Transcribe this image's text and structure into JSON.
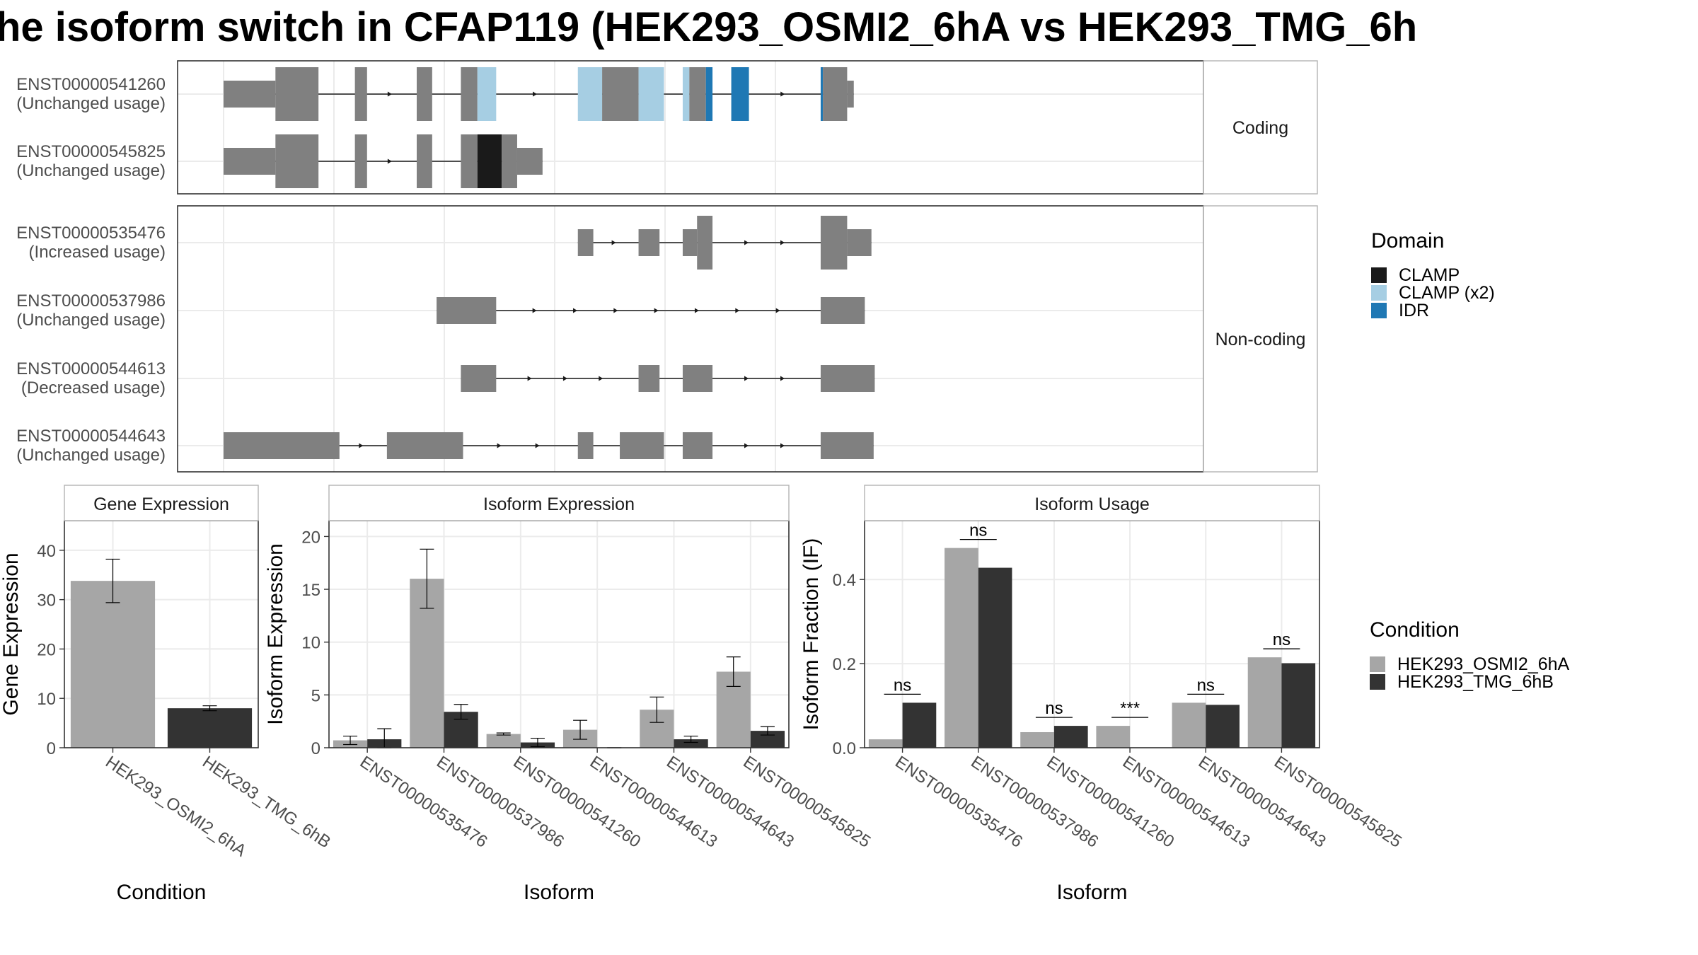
{
  "title": "he isoform switch in CFAP119 (HEK293_OSMI2_6hA vs HEK293_TMG_6h",
  "colors": {
    "exon": "#808080",
    "clamp": "#1a1a1a",
    "clamp_x2": "#a6cee3",
    "idr": "#1f78b4",
    "condition_a": "#a6a6a6",
    "condition_b": "#333333"
  },
  "structure": {
    "facets": [
      {
        "label": "Coding",
        "transcripts": [
          {
            "id": "ENST00000541260",
            "usage": "(Unchanged usage)",
            "exons": [
              [
                0,
                4.7,
                "thin"
              ],
              [
                4.7,
                8.6,
                "thick"
              ],
              [
                11.9,
                13.0,
                "thick"
              ],
              [
                17.5,
                18.9,
                "thick"
              ],
              [
                21.5,
                23.0,
                "thick"
              ],
              [
                23.0,
                24.7,
                "thick",
                "CLAMP (x2)"
              ],
              [
                32.1,
                34.3,
                "thick",
                "CLAMP (x2)"
              ],
              [
                34.3,
                37.6,
                "thick"
              ],
              [
                37.6,
                39.9,
                "thick",
                "CLAMP (x2)"
              ],
              [
                41.6,
                42.2,
                "thick",
                "CLAMP (x2)"
              ],
              [
                42.2,
                43.7,
                "thick"
              ],
              [
                43.7,
                44.3,
                "thick",
                "IDR"
              ],
              [
                46.0,
                47.6,
                "thick",
                "IDR"
              ],
              [
                54.1,
                54.3,
                "thick",
                "IDR"
              ],
              [
                54.3,
                56.5,
                "thick"
              ],
              [
                56.5,
                57.1,
                "thin"
              ]
            ]
          },
          {
            "id": "ENST00000545825",
            "usage": "(Unchanged usage)",
            "exons": [
              [
                0,
                4.7,
                "thin"
              ],
              [
                4.7,
                8.6,
                "thick"
              ],
              [
                11.9,
                13.0,
                "thick"
              ],
              [
                17.5,
                18.9,
                "thick"
              ],
              [
                21.5,
                23.0,
                "thick"
              ],
              [
                23.0,
                25.2,
                "thick",
                "CLAMP"
              ],
              [
                25.2,
                26.6,
                "thick"
              ],
              [
                26.6,
                28.9,
                "thin"
              ]
            ]
          }
        ]
      },
      {
        "label": "Non-coding",
        "transcripts": [
          {
            "id": "ENST00000535476",
            "usage": "(Increased usage)",
            "exons": [
              [
                32.1,
                33.5,
                "thin"
              ],
              [
                37.6,
                39.5,
                "thin"
              ],
              [
                41.6,
                42.9,
                "thin"
              ],
              [
                42.9,
                44.3,
                "thick"
              ],
              [
                54.1,
                56.5,
                "thick"
              ],
              [
                56.5,
                58.7,
                "thin"
              ]
            ]
          },
          {
            "id": "ENST00000537986",
            "usage": "(Unchanged usage)",
            "exons": [
              [
                19.3,
                24.7,
                "thin"
              ],
              [
                54.1,
                58.1,
                "thin"
              ]
            ]
          },
          {
            "id": "ENST00000544613",
            "usage": "(Decreased usage)",
            "exons": [
              [
                21.5,
                24.7,
                "thin"
              ],
              [
                37.6,
                39.5,
                "thin"
              ],
              [
                41.6,
                44.3,
                "thin"
              ],
              [
                54.1,
                59.0,
                "thin"
              ]
            ]
          },
          {
            "id": "ENST00000544643",
            "usage": "(Unchanged usage)",
            "exons": [
              [
                0,
                10.5,
                "thin"
              ],
              [
                14.8,
                21.7,
                "thin"
              ],
              [
                32.1,
                33.5,
                "thin"
              ],
              [
                35.9,
                39.9,
                "thin"
              ],
              [
                41.6,
                44.3,
                "thin"
              ],
              [
                54.1,
                58.9,
                "thin"
              ]
            ]
          }
        ]
      }
    ]
  },
  "domain_legend": {
    "title": "Domain",
    "items": [
      {
        "label": "CLAMP",
        "color": "#1a1a1a"
      },
      {
        "label": "CLAMP (x2)",
        "color": "#a6cee3"
      },
      {
        "label": "IDR",
        "color": "#1f78b4"
      }
    ]
  },
  "condition_legend": {
    "title": "Condition",
    "items": [
      {
        "label": "HEK293_OSMI2_6hA",
        "color": "#a6a6a6"
      },
      {
        "label": "HEK293_TMG_6hB",
        "color": "#333333"
      }
    ]
  },
  "chart_data": [
    {
      "type": "bar",
      "title": "Gene Expression",
      "xlabel": "Condition",
      "ylabel": "Gene Expression",
      "ylim": [
        0,
        46
      ],
      "yticks": [
        0,
        10,
        20,
        30,
        40
      ],
      "categories": [
        "HEK293_OSMI2_6hA",
        "HEK293_TMG_6hB"
      ],
      "values": [
        33.8,
        8.0
      ],
      "errors": [
        [
          29.4,
          38.2
        ],
        [
          7.5,
          8.5
        ]
      ],
      "bar_colors": [
        "#a6a6a6",
        "#333333"
      ]
    },
    {
      "type": "bar",
      "title": "Isoform Expression",
      "xlabel": "Isoform",
      "ylabel": "Isoform Expression",
      "ylim": [
        0,
        21.5
      ],
      "yticks": [
        0,
        5,
        10,
        15,
        20
      ],
      "categories": [
        "ENST00000535476",
        "ENST00000537986",
        "ENST00000541260",
        "ENST00000544613",
        "ENST00000544643",
        "ENST00000545825"
      ],
      "series": [
        {
          "name": "HEK293_OSMI2_6hA",
          "values": [
            0.7,
            16.0,
            1.3,
            1.7,
            3.6,
            7.2
          ],
          "errors": [
            [
              0.3,
              1.1
            ],
            [
              13.2,
              18.8
            ],
            [
              1.2,
              1.4
            ],
            [
              0.8,
              2.6
            ],
            [
              2.4,
              4.8
            ],
            [
              5.8,
              8.6
            ]
          ]
        },
        {
          "name": "HEK293_TMG_6hB",
          "values": [
            0.8,
            3.4,
            0.5,
            0.0,
            0.8,
            1.6
          ],
          "errors": [
            [
              0.0,
              1.8
            ],
            [
              2.7,
              4.1
            ],
            [
              0.1,
              0.9
            ],
            [
              0.0,
              0.0
            ],
            [
              0.5,
              1.1
            ],
            [
              1.2,
              2.0
            ]
          ]
        }
      ]
    },
    {
      "type": "bar",
      "title": "Isoform Usage",
      "xlabel": "Isoform",
      "ylabel": "Isoform Fraction (IF)",
      "ylim": [
        0,
        0.54
      ],
      "yticks": [
        0.0,
        0.2,
        0.4
      ],
      "categories": [
        "ENST00000535476",
        "ENST00000537986",
        "ENST00000541260",
        "ENST00000544613",
        "ENST00000544643",
        "ENST00000545825"
      ],
      "series": [
        {
          "name": "HEK293_OSMI2_6hA",
          "values": [
            0.02,
            0.475,
            0.037,
            0.052,
            0.107,
            0.215
          ]
        },
        {
          "name": "HEK293_TMG_6hB",
          "values": [
            0.107,
            0.428,
            0.052,
            0.0,
            0.102,
            0.201
          ]
        }
      ],
      "significance": [
        "ns",
        "ns",
        "ns",
        "***",
        "ns",
        "ns"
      ]
    }
  ]
}
